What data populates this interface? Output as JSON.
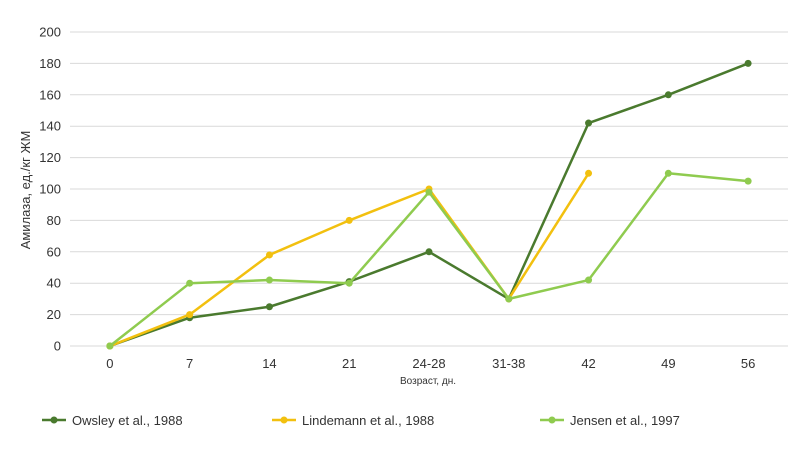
{
  "chart_data": {
    "type": "line",
    "categories": [
      "0",
      "7",
      "14",
      "21",
      "24-28",
      "31-38",
      "42",
      "49",
      "56"
    ],
    "xlabel": "Возраст, дн.",
    "ylabel": "Амилаза, ед./кг ЖМ",
    "ylim": [
      0,
      200
    ],
    "yticks": [
      0,
      20,
      40,
      60,
      80,
      100,
      120,
      140,
      160,
      180,
      200
    ],
    "grid": "horizontal",
    "legend_position": "bottom",
    "series": [
      {
        "name": "Owsley et al., 1988",
        "color": "#4a7a2e",
        "values": [
          0,
          18,
          25,
          41,
          60,
          30,
          142,
          160,
          180
        ]
      },
      {
        "name": "Lindemann et al., 1988",
        "color": "#f2c00f",
        "values": [
          0,
          20,
          58,
          80,
          100,
          30,
          110,
          null,
          null
        ]
      },
      {
        "name": "Jensen et al., 1997",
        "color": "#8fcb4f",
        "values": [
          0,
          40,
          42,
          40,
          98,
          30,
          42,
          110,
          105
        ]
      }
    ]
  }
}
